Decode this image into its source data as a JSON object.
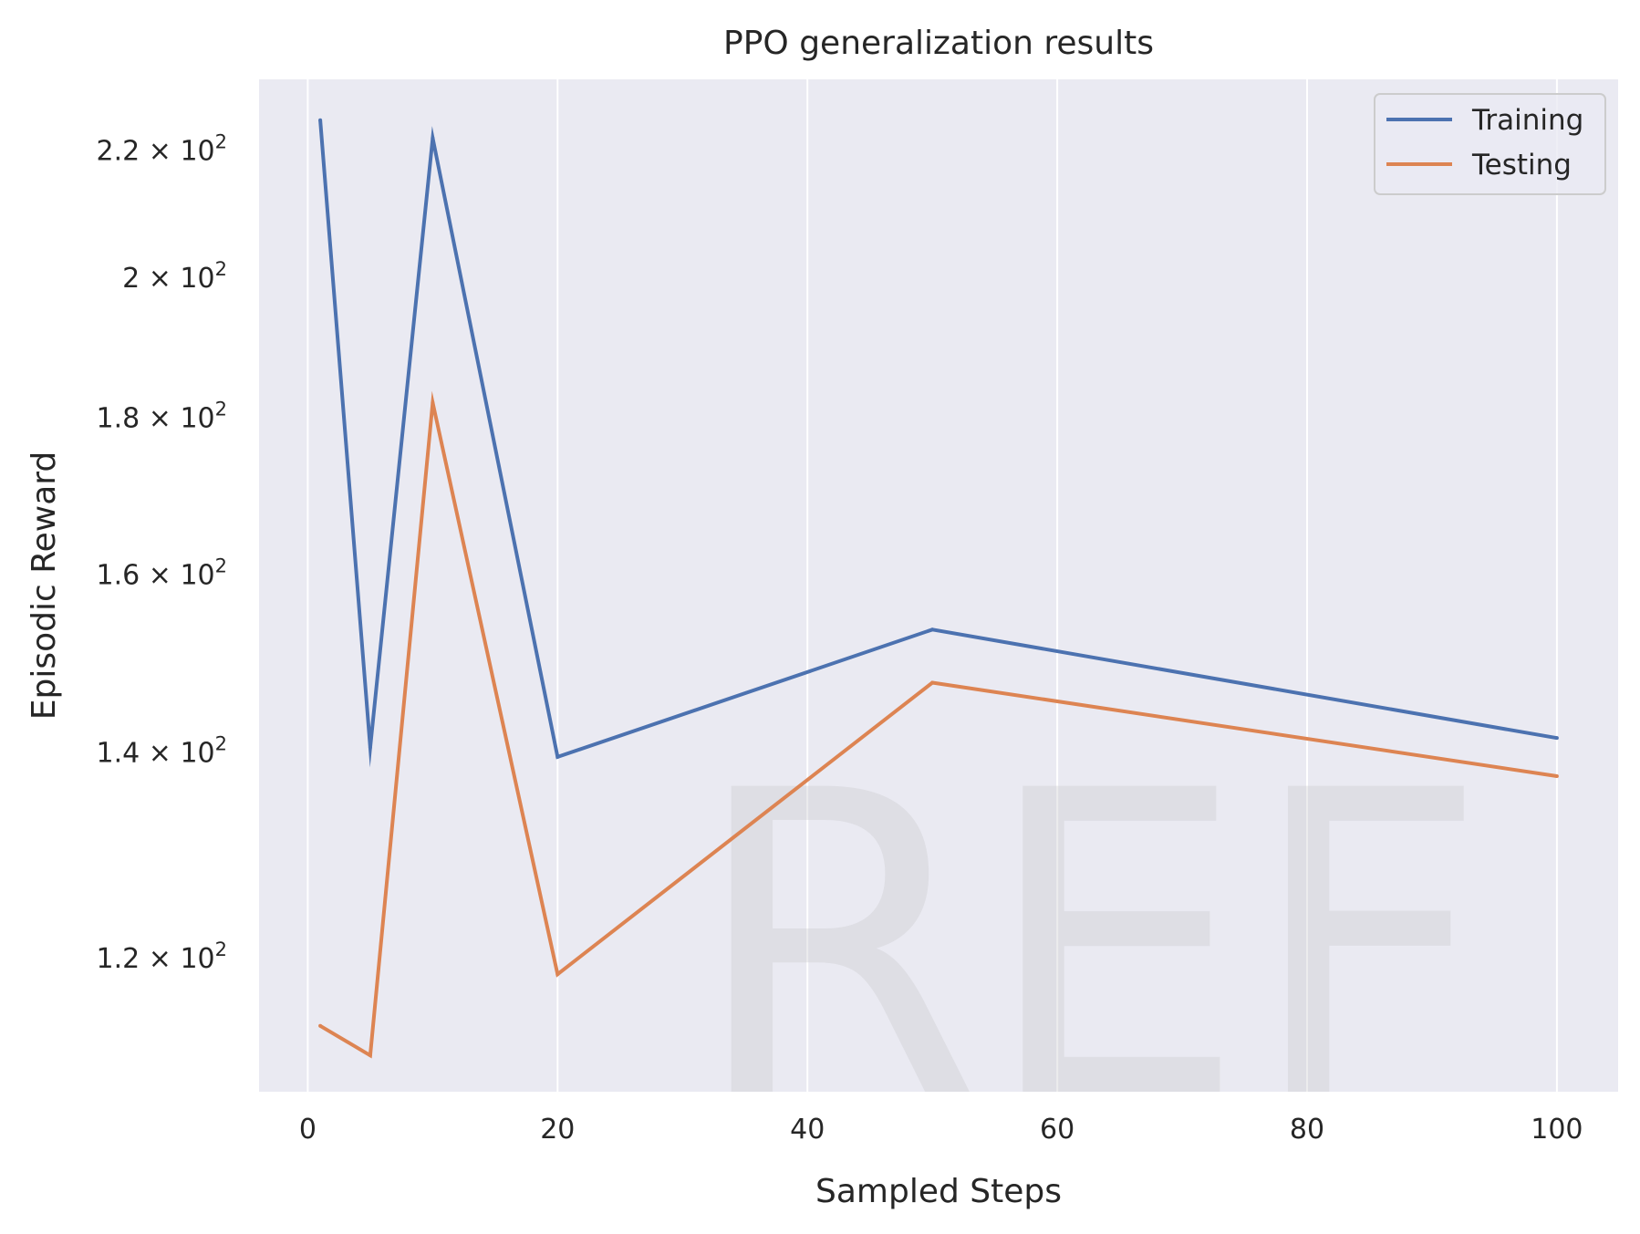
{
  "chart_data": {
    "type": "line",
    "title": "PPO generalization results",
    "xlabel": "Sampled Steps",
    "ylabel": "Episodic Reward",
    "yscale": "log",
    "x": [
      1,
      5,
      10,
      20,
      50,
      100
    ],
    "series": [
      {
        "name": "Training",
        "color": "#4c72b0",
        "values": [
          225,
          140.5,
          222,
          139.5,
          153.5,
          141.5
        ]
      },
      {
        "name": "Testing",
        "color": "#dd8452",
        "values": [
          114,
          111.5,
          182,
          118.5,
          147.5,
          137.5
        ]
      }
    ],
    "xlim": [
      -3.9,
      104.9
    ],
    "ylim": [
      108.5,
      232
    ],
    "x_ticks": [
      0,
      20,
      40,
      60,
      80,
      100
    ],
    "x_tick_labels": [
      "0",
      "20",
      "40",
      "60",
      "80",
      "100"
    ],
    "y_ticks": [
      {
        "value": 120,
        "mantissa": "1.2"
      },
      {
        "value": 140,
        "mantissa": "1.4"
      },
      {
        "value": 160,
        "mantissa": "1.6"
      },
      {
        "value": 180,
        "mantissa": "1.8"
      },
      {
        "value": 200,
        "mantissa": "2"
      },
      {
        "value": 220,
        "mantissa": "2.2"
      }
    ],
    "y_tick_suffix": "× 10",
    "y_tick_exponent": "2",
    "grid": "vertical",
    "legend_position": "top-right",
    "plot_background": "#eaeaf2",
    "watermark": "REF"
  }
}
